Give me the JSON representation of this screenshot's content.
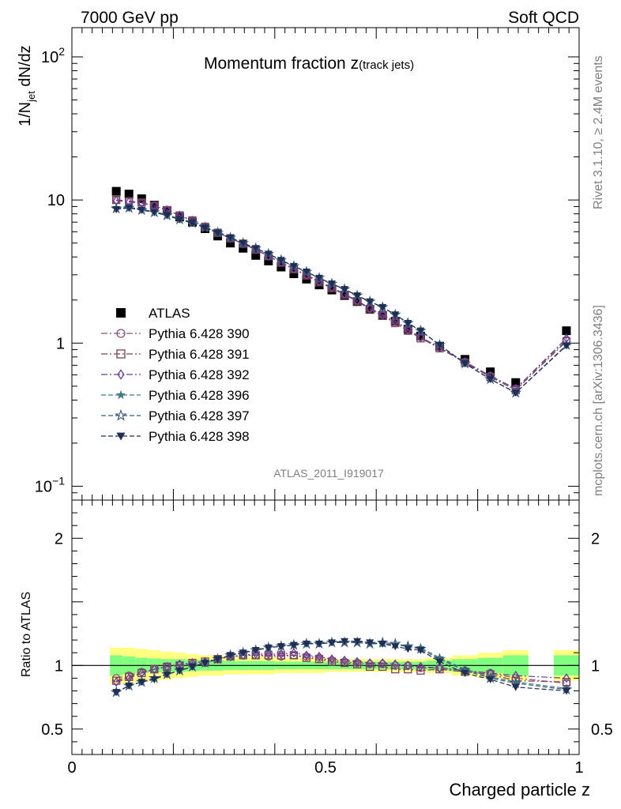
{
  "header": {
    "left": "7000 GeV pp",
    "right": "Soft QCD"
  },
  "side": {
    "rivet": "Rivet 3.1.10, ≥ 2.4M events",
    "mcplots": "mcplots.cern.ch [arXiv:1306.3436]"
  },
  "analysis_id": "ATLAS_2011_I919017",
  "chart_data": [
    {
      "type": "scatter",
      "title_main": "Momentum fraction ",
      "title_z": "z",
      "title_sub": "(track jets)",
      "ylabel_main": "1/N",
      "ylabel_sub": "jet",
      "ylabel_tail": " dN/dz",
      "xlabel": "Charged particle z",
      "ylog": true,
      "ylim": [
        0.08,
        160
      ],
      "xlim": [
        0,
        1
      ],
      "yticks": [
        {
          "v": 0.1,
          "base": "10",
          "exp": "−1"
        },
        {
          "v": 1,
          "base": "1",
          "exp": ""
        },
        {
          "v": 10,
          "base": "10",
          "exp": ""
        },
        {
          "v": 100,
          "base": "10",
          "exp": "2"
        }
      ],
      "x": [
        0.0875,
        0.1125,
        0.1375,
        0.1625,
        0.1875,
        0.2125,
        0.2375,
        0.2625,
        0.2875,
        0.3125,
        0.3375,
        0.3625,
        0.3875,
        0.4125,
        0.4375,
        0.4625,
        0.4875,
        0.5125,
        0.5375,
        0.5625,
        0.5875,
        0.6125,
        0.6375,
        0.6625,
        0.6875,
        0.725,
        0.775,
        0.825,
        0.875,
        0.975
      ],
      "series": [
        {
          "name": "ATLAS",
          "color": "#000000",
          "marker": "square-filled",
          "dash": "none",
          "values": [
            11.5,
            11.0,
            10.2,
            9.2,
            8.4,
            7.6,
            7.0,
            6.3,
            5.6,
            5.0,
            4.6,
            4.1,
            3.75,
            3.4,
            3.05,
            2.8,
            2.55,
            2.35,
            2.15,
            1.95,
            1.72,
            1.56,
            1.42,
            1.25,
            1.12,
            0.95,
            0.77,
            0.63,
            0.53,
            1.22
          ]
        },
        {
          "name": "Pythia 6.428 390",
          "color": "#8a4f7d",
          "marker": "circle-open",
          "dash": "8,3,2,3",
          "values": [
            10.0,
            9.8,
            9.6,
            9.1,
            8.5,
            7.8,
            7.2,
            6.5,
            5.9,
            5.4,
            4.95,
            4.5,
            4.05,
            3.65,
            3.3,
            3.0,
            2.7,
            2.45,
            2.2,
            1.98,
            1.75,
            1.58,
            1.42,
            1.25,
            1.1,
            0.93,
            0.74,
            0.59,
            0.48,
            1.05
          ]
        },
        {
          "name": "Pythia 6.428 391",
          "color": "#7a3f55",
          "marker": "square-open",
          "dash": "8,3,2,3",
          "values": [
            10.0,
            9.8,
            9.6,
            9.1,
            8.5,
            7.8,
            7.2,
            6.5,
            5.9,
            5.4,
            4.95,
            4.5,
            4.05,
            3.65,
            3.28,
            2.97,
            2.66,
            2.42,
            2.18,
            1.96,
            1.72,
            1.55,
            1.38,
            1.22,
            1.08,
            0.92,
            0.73,
            0.58,
            0.47,
            1.03
          ]
        },
        {
          "name": "Pythia 6.428 392",
          "color": "#6a3d9a",
          "marker": "diamond-open",
          "dash": "8,3,2,3",
          "values": [
            9.9,
            9.7,
            9.5,
            9.1,
            8.5,
            7.8,
            7.2,
            6.5,
            5.9,
            5.4,
            4.95,
            4.5,
            4.05,
            3.65,
            3.3,
            3.0,
            2.7,
            2.45,
            2.2,
            1.98,
            1.75,
            1.58,
            1.42,
            1.25,
            1.1,
            0.93,
            0.74,
            0.59,
            0.48,
            1.08
          ]
        },
        {
          "name": "Pythia 6.428 396",
          "color": "#3e7a84",
          "marker": "star-filled",
          "dash": "6,3",
          "values": [
            8.8,
            8.9,
            8.6,
            8.3,
            7.9,
            7.4,
            7.0,
            6.5,
            6.0,
            5.5,
            5.0,
            4.6,
            4.2,
            3.8,
            3.45,
            3.15,
            2.85,
            2.6,
            2.38,
            2.15,
            1.95,
            1.78,
            1.58,
            1.38,
            1.22,
            0.97,
            0.72,
            0.56,
            0.45,
            0.96
          ]
        },
        {
          "name": "Pythia 6.428 397",
          "color": "#3b5a7a",
          "marker": "star-open",
          "dash": "6,3",
          "values": [
            8.7,
            8.8,
            8.5,
            8.2,
            7.8,
            7.3,
            6.9,
            6.4,
            5.9,
            5.45,
            5.0,
            4.6,
            4.2,
            3.8,
            3.45,
            3.15,
            2.85,
            2.6,
            2.38,
            2.15,
            1.95,
            1.78,
            1.58,
            1.38,
            1.22,
            0.97,
            0.72,
            0.56,
            0.45,
            0.97
          ]
        },
        {
          "name": "Pythia 6.428 398",
          "color": "#1f2e55",
          "marker": "triangle-down-filled",
          "dash": "6,3",
          "values": [
            8.6,
            8.8,
            8.5,
            8.2,
            7.8,
            7.3,
            6.9,
            6.4,
            5.9,
            5.45,
            5.0,
            4.6,
            4.2,
            3.8,
            3.45,
            3.15,
            2.85,
            2.6,
            2.38,
            2.15,
            1.95,
            1.78,
            1.58,
            1.38,
            1.22,
            0.97,
            0.72,
            0.56,
            0.45,
            0.96
          ]
        }
      ]
    },
    {
      "type": "scatter",
      "ylabel": "Ratio to ATLAS",
      "xlim": [
        0,
        1
      ],
      "ylim": [
        0.3,
        2.3
      ],
      "yticks": [
        {
          "v": 0.5,
          "label": "0.5"
        },
        {
          "v": 1,
          "label": "1"
        },
        {
          "v": 2,
          "label": "2"
        }
      ],
      "xticks": [
        {
          "v": 0,
          "label": "0"
        },
        {
          "v": 0.5,
          "label": "0.5"
        },
        {
          "v": 1,
          "label": "1"
        }
      ],
      "band_edges": [
        0.075,
        0.1,
        0.125,
        0.15,
        0.175,
        0.2,
        0.225,
        0.25,
        0.275,
        0.3,
        0.325,
        0.35,
        0.375,
        0.4,
        0.425,
        0.45,
        0.475,
        0.5,
        0.525,
        0.55,
        0.575,
        0.6,
        0.625,
        0.65,
        0.675,
        0.7,
        0.75,
        0.8,
        0.85,
        0.9,
        0.95,
        1.0
      ],
      "band_stat": [
        0.08,
        0.07,
        0.06,
        0.055,
        0.05,
        0.05,
        0.045,
        0.04,
        0.04,
        0.035,
        0.035,
        0.035,
        0.035,
        0.03,
        0.03,
        0.03,
        0.03,
        0.03,
        0.03,
        0.03,
        0.03,
        0.03,
        0.03,
        0.03,
        0.03,
        0.04,
        0.05,
        0.06,
        0.08,
        0,
        0.08
      ],
      "band_total": [
        0.14,
        0.14,
        0.13,
        0.12,
        0.11,
        0.1,
        0.09,
        0.08,
        0.08,
        0.07,
        0.07,
        0.07,
        0.07,
        0.06,
        0.06,
        0.06,
        0.06,
        0.05,
        0.05,
        0.05,
        0.05,
        0.05,
        0.05,
        0.05,
        0.05,
        0.06,
        0.08,
        0.1,
        0.12,
        0,
        0.12
      ],
      "band_stat_color": "#80ff80",
      "band_total_color": "#ffff80",
      "series": [
        {
          "name": "Pythia 6.428 390",
          "values": [
            0.9,
            0.92,
            0.95,
            0.97,
            0.99,
            1.0,
            1.01,
            1.02,
            1.05,
            1.07,
            1.08,
            1.08,
            1.07,
            1.07,
            1.08,
            1.07,
            1.06,
            1.04,
            1.03,
            1.02,
            1.01,
            1.01,
            1.0,
            1.0,
            0.98,
            0.98,
            0.96,
            0.94,
            0.9,
            0.86
          ]
        },
        {
          "name": "Pythia 6.428 391",
          "values": [
            0.88,
            0.91,
            0.94,
            0.97,
            0.99,
            1.0,
            1.02,
            1.03,
            1.05,
            1.07,
            1.08,
            1.08,
            1.08,
            1.08,
            1.08,
            1.06,
            1.05,
            1.03,
            1.02,
            1.01,
            0.99,
            0.99,
            0.97,
            0.97,
            0.96,
            0.97,
            0.95,
            0.93,
            0.88,
            0.87
          ]
        },
        {
          "name": "Pythia 6.428 392",
          "values": [
            0.87,
            0.9,
            0.94,
            0.97,
            0.99,
            1.01,
            1.02,
            1.03,
            1.05,
            1.07,
            1.08,
            1.09,
            1.09,
            1.09,
            1.1,
            1.08,
            1.07,
            1.05,
            1.04,
            1.03,
            1.02,
            1.02,
            1.01,
            1.0,
            0.99,
            0.98,
            0.96,
            0.94,
            0.92,
            0.9
          ]
        },
        {
          "name": "Pythia 6.428 396",
          "values": [
            0.79,
            0.84,
            0.87,
            0.9,
            0.93,
            0.96,
            0.99,
            1.02,
            1.05,
            1.08,
            1.1,
            1.12,
            1.14,
            1.15,
            1.16,
            1.17,
            1.17,
            1.18,
            1.18,
            1.18,
            1.17,
            1.17,
            1.16,
            1.15,
            1.14,
            1.06,
            0.97,
            0.91,
            0.87,
            0.82
          ]
        },
        {
          "name": "Pythia 6.428 397",
          "values": [
            0.79,
            0.84,
            0.87,
            0.9,
            0.93,
            0.96,
            0.99,
            1.02,
            1.05,
            1.08,
            1.1,
            1.12,
            1.14,
            1.15,
            1.16,
            1.17,
            1.17,
            1.18,
            1.18,
            1.18,
            1.17,
            1.18,
            1.17,
            1.15,
            1.13,
            1.05,
            0.96,
            0.9,
            0.86,
            0.81
          ]
        },
        {
          "name": "Pythia 6.428 398",
          "values": [
            0.79,
            0.84,
            0.87,
            0.89,
            0.93,
            0.96,
            0.99,
            1.02,
            1.05,
            1.08,
            1.1,
            1.12,
            1.14,
            1.15,
            1.16,
            1.17,
            1.17,
            1.18,
            1.19,
            1.19,
            1.18,
            1.17,
            1.15,
            1.13,
            1.12,
            1.03,
            0.94,
            0.89,
            0.83,
            0.8
          ]
        }
      ]
    }
  ]
}
